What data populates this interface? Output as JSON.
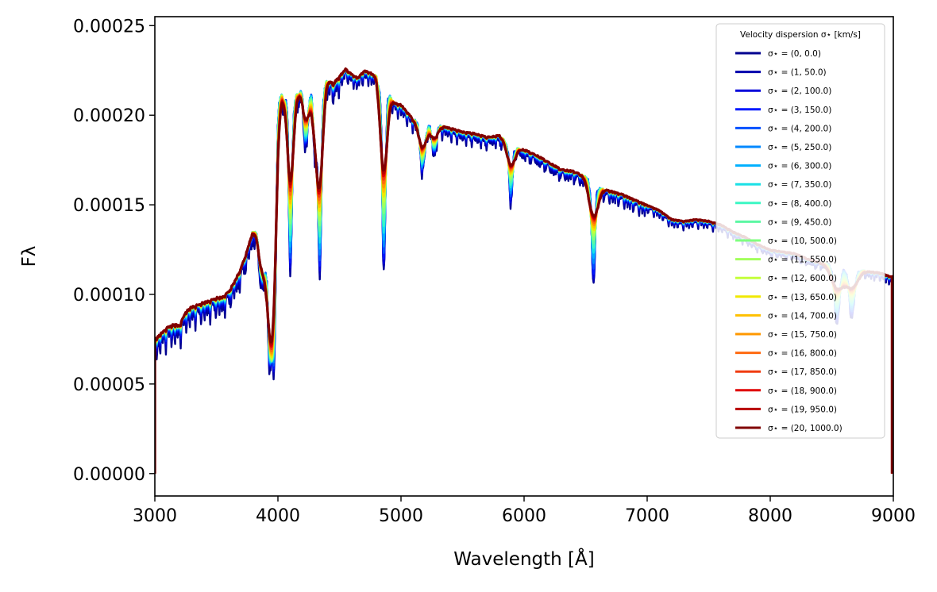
{
  "chart_data": {
    "type": "line",
    "title": "",
    "xlabel": "Wavelength [Å]",
    "ylabel": "Fλ",
    "xlim": [
      3000,
      9000
    ],
    "ylim": [
      -1.25e-05,
      0.000255
    ],
    "xticks": [
      3000,
      4000,
      5000,
      6000,
      7000,
      8000,
      9000
    ],
    "xtick_labels": [
      "3000",
      "4000",
      "5000",
      "6000",
      "7000",
      "8000",
      "9000"
    ],
    "yticks": [
      0,
      5e-05,
      0.0001,
      0.00015,
      0.0002,
      0.00025
    ],
    "ytick_labels": [
      "0.00000",
      "0.00005",
      "0.00010",
      "0.00015",
      "0.00020",
      "0.00025"
    ],
    "grid": false,
    "legend": {
      "title": "Velocity dispersion σ⋆ [km/s]",
      "placement": "top-right",
      "alpha": 0.85
    },
    "continuum": {
      "wavelength": [
        3000,
        3020,
        3050,
        3100,
        3150,
        3200,
        3250,
        3300,
        3350,
        3400,
        3450,
        3500,
        3550,
        3600,
        3650,
        3700,
        3750,
        3800,
        3850,
        3900,
        3950,
        4000,
        4050,
        4100,
        4150,
        4200,
        4250,
        4300,
        4350,
        4400,
        4450,
        4500,
        4550,
        4600,
        4650,
        4700,
        4750,
        4800,
        4850,
        4900,
        4950,
        5000,
        5100,
        5200,
        5300,
        5400,
        5500,
        5600,
        5700,
        5800,
        5900,
        6000,
        6100,
        6200,
        6300,
        6400,
        6500,
        6600,
        6700,
        6800,
        6900,
        7000,
        7100,
        7200,
        7300,
        7400,
        7500,
        7600,
        7700,
        7800,
        7900,
        8000,
        8100,
        8200,
        8300,
        8400,
        8500,
        8600,
        8700,
        8800,
        8900,
        8980
      ],
      "flux": [
        7.55e-05,
        7.65e-05,
        7.85e-05,
        8.2e-05,
        8.35e-05,
        8.3e-05,
        9.05e-05,
        9.35e-05,
        9.45e-05,
        9.6e-05,
        9.7e-05,
        9.85e-05,
        9.9e-05,
        0.000102,
        0.000108,
        0.000115,
        0.000125,
        0.000138,
        0.00015,
        0.000165,
        0.000185,
        0.000215,
        0.00021,
        0.000208,
        0.000212,
        0.000215,
        0.000214,
        0.000216,
        0.000215,
        0.00022,
        0.000218,
        0.000222,
        0.000226,
        0.000223,
        0.000221,
        0.000225,
        0.000224,
        0.000222,
        0.000208,
        0.000212,
        0.000207,
        0.000206,
        0.000198,
        0.000196,
        0.000195,
        0.000193,
        0.000191,
        0.00019,
        0.000188,
        0.000189,
        0.000183,
        0.000181,
        0.000178,
        0.000174,
        0.00017,
        0.000169,
        0.000166,
        0.00016,
        0.000158,
        0.000156,
        0.000153,
        0.00015,
        0.000147,
        0.000142,
        0.000141,
        0.000142,
        0.000141,
        0.000139,
        0.000135,
        0.000132,
        0.000128,
        0.000125,
        0.000124,
        0.000123,
        0.00012,
        0.000118,
        0.000117,
        0.000115,
        0.000114,
        0.000113,
        0.000112,
        0.00011
      ]
    },
    "absorption_lines": [
      {
        "center": 3880,
        "depth": 5e-05,
        "width": 30
      },
      {
        "center": 3934,
        "depth": 9.5e-05,
        "width": 16
      },
      {
        "center": 3969,
        "depth": 0.00012,
        "width": 16
      },
      {
        "center": 4102,
        "depth": 9e-05,
        "width": 12
      },
      {
        "center": 4227,
        "depth": 3e-05,
        "width": 14
      },
      {
        "center": 4305,
        "depth": 4e-05,
        "width": 14
      },
      {
        "center": 4341,
        "depth": 9.7e-05,
        "width": 12
      },
      {
        "center": 4861,
        "depth": 9.2e-05,
        "width": 12
      },
      {
        "center": 5175,
        "depth": 2.5e-05,
        "width": 18
      },
      {
        "center": 5270,
        "depth": 1.5e-05,
        "width": 16
      },
      {
        "center": 5893,
        "depth": 3e-05,
        "width": 12
      },
      {
        "center": 6563,
        "depth": 5.5e-05,
        "width": 12
      },
      {
        "center": 8542,
        "depth": 3e-05,
        "width": 20
      },
      {
        "center": 8662,
        "depth": 2.5e-05,
        "width": 20
      }
    ],
    "series": [
      {
        "name": "σ⋆ = (0, 0.0)",
        "index": 0,
        "sigma": 0.0,
        "color": "#00008f"
      },
      {
        "name": "σ⋆ = (1, 50.0)",
        "index": 1,
        "sigma": 50.0,
        "color": "#0000ad"
      },
      {
        "name": "σ⋆ = (2, 100.0)",
        "index": 2,
        "sigma": 100.0,
        "color": "#0000da"
      },
      {
        "name": "σ⋆ = (3, 150.0)",
        "index": 3,
        "sigma": 150.0,
        "color": "#0018ff"
      },
      {
        "name": "σ⋆ = (4, 200.0)",
        "index": 4,
        "sigma": 200.0,
        "color": "#0050ff"
      },
      {
        "name": "σ⋆ = (5, 250.0)",
        "index": 5,
        "sigma": 250.0,
        "color": "#0088ff"
      },
      {
        "name": "σ⋆ = (6, 300.0)",
        "index": 6,
        "sigma": 300.0,
        "color": "#00b0ff"
      },
      {
        "name": "σ⋆ = (7, 350.0)",
        "index": 7,
        "sigma": 350.0,
        "color": "#1ae0e6"
      },
      {
        "name": "σ⋆ = (8, 400.0)",
        "index": 8,
        "sigma": 400.0,
        "color": "#3bf7c4"
      },
      {
        "name": "σ⋆ = (9, 450.0)",
        "index": 9,
        "sigma": 450.0,
        "color": "#5cf7a3"
      },
      {
        "name": "σ⋆ = (10, 500.0)",
        "index": 10,
        "sigma": 500.0,
        "color": "#80ff80"
      },
      {
        "name": "σ⋆ = (11, 550.0)",
        "index": 11,
        "sigma": 550.0,
        "color": "#a3ff5c"
      },
      {
        "name": "σ⋆ = (12, 600.0)",
        "index": 12,
        "sigma": 600.0,
        "color": "#c4ff3b"
      },
      {
        "name": "σ⋆ = (13, 650.0)",
        "index": 13,
        "sigma": 650.0,
        "color": "#f0e800"
      },
      {
        "name": "σ⋆ = (14, 700.0)",
        "index": 14,
        "sigma": 700.0,
        "color": "#ffc000"
      },
      {
        "name": "σ⋆ = (15, 750.0)",
        "index": 15,
        "sigma": 750.0,
        "color": "#ff9800"
      },
      {
        "name": "σ⋆ = (16, 800.0)",
        "index": 16,
        "sigma": 800.0,
        "color": "#ff6a10"
      },
      {
        "name": "σ⋆ = (17, 850.0)",
        "index": 17,
        "sigma": 850.0,
        "color": "#f03c10"
      },
      {
        "name": "σ⋆ = (18, 900.0)",
        "index": 18,
        "sigma": 900.0,
        "color": "#e00000"
      },
      {
        "name": "σ⋆ = (19, 950.0)",
        "index": 19,
        "sigma": 950.0,
        "color": "#b80000"
      },
      {
        "name": "σ⋆ = (20, 1000.0)",
        "index": 20,
        "sigma": 1000.0,
        "color": "#800000"
      }
    ]
  }
}
